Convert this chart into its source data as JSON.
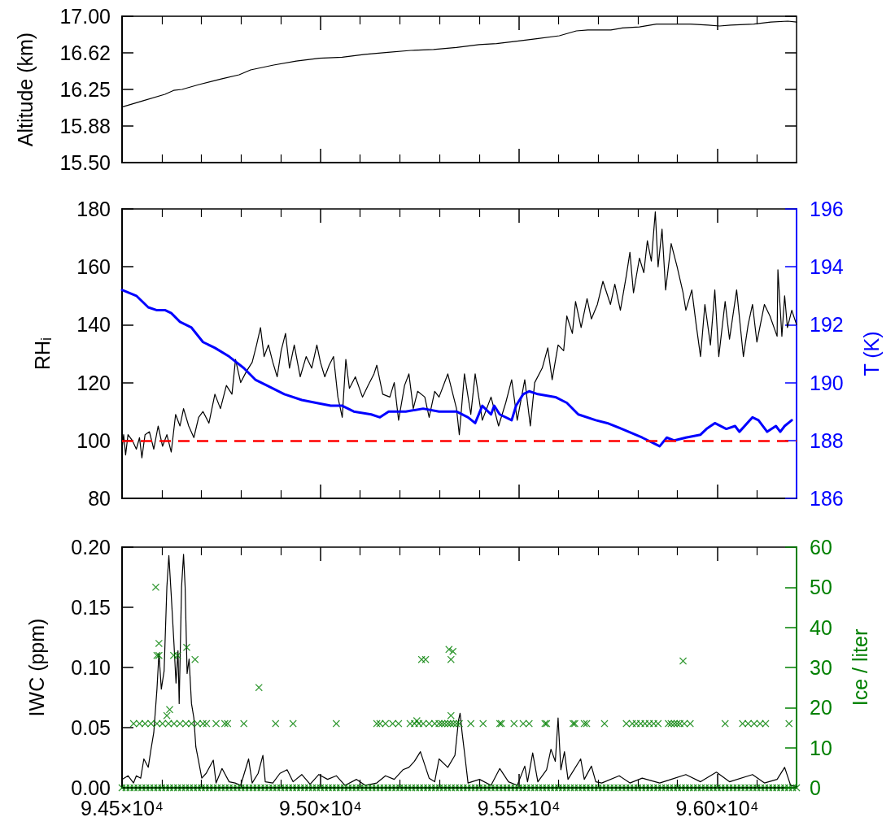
{
  "chart_data": [
    {
      "type": "line",
      "ylabel": "Altitude (km)",
      "series": [
        {
          "color": "#000000",
          "x": [
            94500,
            94550,
            94608,
            94630,
            94651,
            94694,
            94752,
            94795,
            94824,
            94882,
            94939,
            94997,
            95055,
            95112,
            95170,
            95228,
            95285,
            95343,
            95400,
            95444,
            95487,
            95545,
            95602,
            95645,
            95674,
            95732,
            95761,
            95804,
            95847,
            95890,
            95933,
            95977,
            96006,
            96034,
            96092,
            96135,
            96178,
            96200
          ],
          "values": [
            16.07,
            16.13,
            16.2,
            16.24,
            16.25,
            16.3,
            16.36,
            16.4,
            16.45,
            16.5,
            16.54,
            16.57,
            16.58,
            16.61,
            16.63,
            16.65,
            16.66,
            16.68,
            16.71,
            16.72,
            16.74,
            16.77,
            16.8,
            16.85,
            16.86,
            16.86,
            16.88,
            16.89,
            16.92,
            16.92,
            16.92,
            16.91,
            16.9,
            16.91,
            16.92,
            16.94,
            16.95,
            16.94
          ]
        }
      ],
      "xlim": [
        94500,
        96200
      ],
      "xticks": [
        {
          "value": 94500,
          "label": null
        },
        {
          "value": 95000,
          "label": null
        },
        {
          "value": 95500,
          "label": null
        },
        {
          "value": 96000,
          "label": null
        }
      ],
      "ylim": [
        15.5,
        17
      ],
      "yticks": [
        {
          "value": 15.5,
          "label": "15.50"
        },
        {
          "value": 15.875,
          "label": "15.88"
        },
        16.25,
        {
          "value": 16.625,
          "label": "16.62"
        },
        {
          "value": 17,
          "label": "17.00"
        }
      ],
      "tick_labels": "y"
    },
    {
      "type": "line",
      "ylabel": "RHᵢ",
      "y2label": "T (K)",
      "series": [
        {
          "color": "#000000",
          "x": [
            94500,
            94504,
            94509,
            94515,
            94526,
            94536,
            94544,
            94550,
            94558,
            94569,
            94580,
            94591,
            94602,
            94613,
            94624,
            94635,
            94646,
            94655,
            94668,
            94681,
            94693,
            94704,
            94719,
            94734,
            94748,
            94763,
            94777,
            94786,
            94799,
            94814,
            94828,
            94839,
            94849,
            94858,
            94869,
            94880,
            94891,
            94901,
            94912,
            94922,
            94934,
            94949,
            94964,
            94978,
            94991,
            95000,
            95011,
            95022,
            95033,
            95044,
            95055,
            95064,
            95073,
            95088,
            95106,
            95120,
            95135,
            95142,
            95157,
            95175,
            95186,
            95197,
            95212,
            95223,
            95234,
            95245,
            95263,
            95274,
            95288,
            95299,
            95321,
            95343,
            95350,
            95363,
            95379,
            95390,
            95408,
            95430,
            95449,
            95467,
            95482,
            95496,
            95515,
            95529,
            95540,
            95559,
            95573,
            95584,
            95599,
            95613,
            95621,
            95635,
            95643,
            95657,
            95672,
            95683,
            95698,
            95712,
            95731,
            95742,
            95756,
            95771,
            95780,
            95789,
            95804,
            95815,
            95824,
            95834,
            95844,
            95851,
            95861,
            95870,
            95884,
            95899,
            95914,
            95921,
            95936,
            95947,
            95958,
            95969,
            95983,
            95994,
            96004,
            96020,
            96031,
            96049,
            96066,
            96078,
            96089,
            96100,
            96119,
            96133,
            96151,
            96153,
            96163,
            96170,
            96177,
            96188,
            96200
          ],
          "values": [
            97,
            102,
            95,
            102,
            100,
            97,
            101,
            94,
            102,
            103,
            97,
            105,
            98,
            102,
            96,
            109,
            105,
            111,
            105,
            101,
            108,
            110,
            106,
            116,
            111,
            119,
            116,
            128,
            120,
            124,
            127,
            133,
            139,
            129,
            133,
            127,
            122,
            131,
            137,
            125,
            133,
            122,
            129,
            125,
            133,
            127,
            122,
            126,
            129,
            115,
            108,
            128,
            118,
            122,
            115,
            119,
            123,
            126,
            116,
            115,
            120,
            107,
            119,
            123,
            111,
            117,
            115,
            108,
            117,
            115,
            123,
            111,
            102,
            123,
            109,
            123,
            107,
            115,
            105,
            113,
            121,
            107,
            121,
            105,
            120,
            125,
            132,
            121,
            133,
            131,
            143,
            137,
            148,
            139,
            149,
            142,
            147,
            155,
            147,
            154,
            145,
            157,
            165,
            151,
            163,
            158,
            169,
            162,
            179,
            160,
            173,
            152,
            168,
            160,
            151,
            145,
            152,
            140,
            129,
            147,
            133,
            152,
            129,
            148,
            135,
            152,
            129,
            140,
            147,
            134,
            147,
            143,
            136,
            159,
            136,
            150,
            139,
            145,
            140
          ]
        },
        {
          "color": "#0000ff",
          "axis": "y2",
          "x": [
            94500,
            94536,
            94566,
            94588,
            94609,
            94624,
            94646,
            94675,
            94704,
            94734,
            94770,
            94807,
            94836,
            94865,
            94909,
            94953,
            94989,
            95026,
            95055,
            95084,
            95128,
            95150,
            95172,
            95215,
            95259,
            95299,
            95343,
            95372,
            95390,
            95408,
            95430,
            95438,
            95452,
            95482,
            95493,
            95511,
            95526,
            95548,
            95592,
            95621,
            95650,
            95694,
            95723,
            95760,
            95811,
            95855,
            95873,
            95892,
            95921,
            95958,
            95973,
            95994,
            96023,
            96045,
            96056,
            96089,
            96104,
            96126,
            96148,
            96159,
            96170,
            96188
          ],
          "values": [
            193.2,
            193.0,
            192.6,
            192.5,
            192.5,
            192.4,
            192.1,
            191.9,
            191.4,
            191.2,
            190.9,
            190.5,
            190.1,
            189.9,
            189.6,
            189.4,
            189.3,
            189.2,
            189.2,
            189.0,
            188.9,
            188.8,
            189.0,
            189.0,
            189.1,
            189.0,
            189.0,
            188.8,
            188.6,
            189.2,
            188.9,
            189.2,
            188.9,
            188.7,
            189.2,
            189.6,
            189.7,
            189.6,
            189.5,
            189.3,
            188.9,
            188.7,
            188.6,
            188.4,
            188.1,
            187.8,
            188.1,
            188.0,
            188.1,
            188.2,
            188.4,
            188.6,
            188.4,
            188.5,
            188.3,
            188.8,
            188.7,
            188.3,
            188.5,
            188.3,
            188.5,
            188.7
          ]
        }
      ],
      "ref_lines": [
        {
          "axis": "y",
          "value": 100,
          "color": "#ff0000",
          "line_style": "dashed"
        }
      ],
      "xlim": [
        94500,
        96200
      ],
      "xticks": [
        {
          "value": 94500,
          "label": null
        },
        {
          "value": 95000,
          "label": null
        },
        {
          "value": 95500,
          "label": null
        },
        {
          "value": 96000,
          "label": null
        }
      ],
      "ylim": [
        80,
        180
      ],
      "yticks": [
        80,
        100,
        120,
        140,
        160,
        180
      ],
      "y2lim": [
        186,
        196
      ],
      "y2ticks": [
        186,
        188,
        190,
        192,
        194,
        196
      ],
      "tick_labels": "y"
    },
    {
      "type": "line",
      "ylabel": "IWC (ppm)",
      "y2label": "Ice / liter",
      "series": [
        {
          "color": "#000000",
          "x": [
            94500,
            94515,
            94529,
            94536,
            94547,
            94555,
            94566,
            94573,
            94580,
            94588,
            94593,
            94599,
            94606,
            94613,
            94618,
            94624,
            94631,
            94636,
            94641,
            94644,
            94650,
            94655,
            94659,
            94664,
            94669,
            94675,
            94681,
            94686,
            94693,
            94701,
            94712,
            94730,
            94737,
            94752,
            94770,
            94785,
            94799,
            94819,
            94828,
            94843,
            94855,
            94861,
            94880,
            94898,
            94916,
            94931,
            94953,
            94974,
            94996,
            95018,
            95040,
            95062,
            95091,
            95113,
            95142,
            95164,
            95186,
            95208,
            95223,
            95237,
            95252,
            95263,
            95274,
            95288,
            95299,
            95321,
            95339,
            95348,
            95352,
            95357,
            95365,
            95372,
            95401,
            95430,
            95452,
            95474,
            95496,
            95515,
            95522,
            95535,
            95548,
            95570,
            95581,
            95592,
            95599,
            95606,
            95615,
            95624,
            95656,
            95665,
            95683,
            95694,
            95709,
            95753,
            95780,
            95811,
            95855,
            95884,
            95921,
            95958,
            95998,
            96031,
            96089,
            96119,
            96151,
            96170,
            96185,
            96200
          ],
          "values": [
            0.007,
            0.01,
            0.004,
            0.01,
            0.008,
            0.024,
            0.017,
            0.032,
            0.046,
            0.082,
            0.112,
            0.082,
            0.097,
            0.167,
            0.193,
            0.16,
            0.119,
            0.087,
            0.114,
            0.07,
            0.167,
            0.194,
            0.167,
            0.095,
            0.107,
            0.07,
            0.058,
            0.034,
            0.022,
            0.008,
            0.012,
            0.023,
            0.004,
            0.016,
            0.005,
            0.004,
            0.002,
            0.024,
            0.004,
            0.012,
            0.027,
            0.005,
            0.004,
            0.012,
            0.015,
            0.005,
            0.011,
            0.003,
            0.011,
            0.007,
            0.01,
            0.002,
            0.007,
            0.002,
            0.004,
            0.01,
            0.007,
            0.015,
            0.017,
            0.022,
            0.03,
            0.019,
            0.008,
            0.005,
            0.024,
            0.017,
            0.027,
            0.056,
            0.062,
            0.046,
            0.024,
            0.004,
            0.007,
            0.002,
            0.016,
            0.005,
            0.002,
            0.018,
            0.005,
            0.029,
            0.005,
            0.015,
            0.032,
            0.022,
            0.058,
            0.015,
            0.03,
            0.007,
            0.024,
            0.007,
            0.018,
            0.005,
            0.004,
            0.01,
            0.004,
            0.008,
            0.004,
            0.007,
            0.011,
            0.005,
            0.013,
            0.005,
            0.011,
            0.004,
            0.007,
            0.017,
            0.002,
            0.001
          ]
        },
        {
          "type": "scatter",
          "color": "#008000",
          "axis": "y2",
          "marker": "cross",
          "x": [
            94529,
            94544,
            94558,
            94573,
            94585,
            94588,
            94588,
            94593,
            94593,
            94602,
            94613,
            94617,
            94620,
            94630,
            94631,
            94640,
            94646,
            94661,
            94663,
            94675,
            94684,
            94690,
            94704,
            94713,
            94737,
            94759,
            94766,
            94807,
            94845,
            94887,
            94931,
            95040,
            95142,
            95150,
            95164,
            95182,
            95197,
            95226,
            95237,
            95243,
            95248,
            95255,
            95259,
            95265,
            95274,
            95288,
            95299,
            95306,
            95313,
            95321,
            95324,
            95328,
            95329,
            95329,
            95334,
            95335,
            95343,
            95350,
            95379,
            95410,
            95452,
            95456,
            95488,
            95511,
            95526,
            95566,
            95570,
            95637,
            95641,
            95665,
            95671,
            95716,
            95771,
            95786,
            95796,
            95807,
            95818,
            95829,
            95840,
            95851,
            95877,
            95884,
            95892,
            95899,
            95906,
            95914,
            95917,
            95932,
            96020,
            96064,
            96078,
            96093,
            96108,
            96122,
            96181,
            94500,
            94510,
            94520,
            94530,
            94540,
            94550,
            94560,
            94570,
            94580,
            94590,
            94600,
            94610,
            94620,
            94630,
            94640,
            94650,
            94660,
            94670,
            94680,
            94690,
            94700,
            94710,
            94720,
            94730,
            94740,
            94750,
            94760,
            94770,
            94780,
            94790,
            94800,
            94810,
            94820,
            94830,
            94840,
            94850,
            94860,
            94870,
            94880,
            94890,
            94900,
            94910,
            94920,
            94930,
            94940,
            94950,
            94960,
            94970,
            94980,
            94990,
            95000,
            95010,
            95020,
            95030,
            95040,
            95050,
            95060,
            95070,
            95080,
            95090,
            95100,
            95110,
            95120,
            95130,
            95140,
            95150,
            95160,
            95170,
            95180,
            95190,
            95200,
            95210,
            95220,
            95230,
            95240,
            95250,
            95260,
            95270,
            95280,
            95290,
            95300,
            95310,
            95320,
            95330,
            95340,
            95350,
            95360,
            95370,
            95380,
            95390,
            95400,
            95410,
            95420,
            95430,
            95440,
            95450,
            95460,
            95470,
            95480,
            95490,
            95500,
            95510,
            95520,
            95530,
            95540,
            95550,
            95560,
            95570,
            95580,
            95590,
            95600,
            95610,
            95620,
            95630,
            95640,
            95650,
            95660,
            95670,
            95680,
            95690,
            95700,
            95710,
            95720,
            95730,
            95740,
            95750,
            95760,
            95770,
            95780,
            95790,
            95800,
            95810,
            95820,
            95830,
            95840,
            95850,
            95860,
            95870,
            95880,
            95890,
            95900,
            95910,
            95920,
            95930,
            95940,
            95950,
            95960,
            95970,
            95980,
            95990,
            96000,
            96010,
            96020,
            96030,
            96040,
            96050,
            96060,
            96070,
            96080,
            96090,
            96100,
            96110,
            96120,
            96130,
            96140,
            96150,
            96160,
            96170,
            96180,
            96190,
            96200
          ],
          "values": [
            16,
            16,
            16,
            16,
            50,
            33,
            16,
            36,
            33,
            16,
            18,
            16,
            19.5,
            33,
            16,
            33,
            16,
            16,
            35,
            16,
            32,
            16,
            16,
            16,
            16,
            16,
            16,
            16,
            25,
            16,
            16,
            16,
            16,
            16,
            16,
            16,
            16,
            16,
            16,
            16.7,
            16,
            32,
            16,
            32,
            16,
            16,
            16,
            16,
            16,
            16,
            34.5,
            16,
            32,
            18,
            34,
            16,
            16,
            16,
            16,
            16,
            16,
            16,
            16,
            16,
            16,
            16,
            16,
            16,
            16,
            16,
            16,
            16,
            16,
            16,
            16,
            16,
            16,
            16,
            16,
            16,
            16,
            16,
            16,
            16,
            16,
            31.6,
            16,
            16,
            16,
            16,
            16,
            16,
            16,
            16,
            16,
            0,
            0,
            0,
            0,
            0,
            0,
            0,
            0,
            0,
            0,
            0,
            0,
            0,
            0,
            0,
            0,
            0,
            0,
            0,
            0,
            0,
            0,
            0,
            0,
            0,
            0,
            0,
            0,
            0,
            0,
            0,
            0,
            0,
            0,
            0,
            0,
            0,
            0,
            0,
            0,
            0,
            0,
            0,
            0,
            0,
            0,
            0,
            0,
            0,
            0,
            0,
            0,
            0,
            0,
            0,
            0,
            0,
            0,
            0,
            0,
            0,
            0,
            0,
            0,
            0,
            0,
            0,
            0,
            0,
            0,
            0,
            0,
            0,
            0,
            0,
            0,
            0,
            0,
            0,
            0,
            0,
            0,
            0,
            0,
            0,
            0,
            0,
            0,
            0,
            0,
            0,
            0,
            0,
            0,
            0,
            0,
            0,
            0,
            0,
            0,
            0,
            0,
            0,
            0,
            0,
            0,
            0,
            0,
            0,
            0,
            0,
            0,
            0,
            0,
            0,
            0,
            0,
            0,
            0,
            0,
            0,
            0,
            0,
            0,
            0,
            0,
            0,
            0,
            0,
            0,
            0,
            0,
            0,
            0,
            0,
            0,
            0,
            0,
            0,
            0,
            0,
            0,
            0,
            0,
            0,
            0,
            0,
            0,
            0,
            0,
            0,
            0,
            0,
            0,
            0,
            0,
            0,
            0,
            0,
            0,
            0,
            0,
            0,
            0,
            0,
            0,
            0,
            0,
            0,
            0,
            0
          ]
        }
      ],
      "xlim": [
        94500,
        96200
      ],
      "xticks": [
        {
          "value": 94500,
          "label": "9.45×10⁴"
        },
        {
          "value": 95000,
          "label": "9.50×10⁴"
        },
        {
          "value": 95500,
          "label": "9.55×10⁴"
        },
        {
          "value": 96000,
          "label": "9.60×10⁴"
        }
      ],
      "ylim": [
        0,
        0.2
      ],
      "yticks": [
        {
          "value": 0,
          "label": "0.00"
        },
        0.05,
        {
          "value": 0.1,
          "label": "0.10"
        },
        0.15,
        {
          "value": 0.2,
          "label": "0.20"
        }
      ],
      "y2lim": [
        0,
        60
      ],
      "y2ticks": [
        0,
        10,
        20,
        30,
        40,
        50,
        60
      ]
    }
  ]
}
